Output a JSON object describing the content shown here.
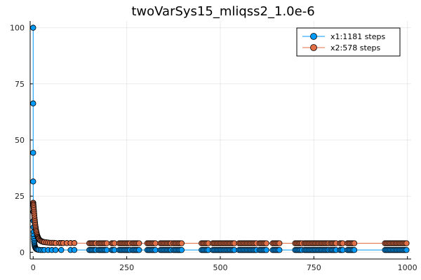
{
  "chart_data": {
    "type": "scatter",
    "title": "twoVarSys15_mliqss2_1.0e-6",
    "xlabel": "",
    "ylabel": "",
    "xlim": [
      -8,
      1010
    ],
    "ylim": [
      -3,
      103
    ],
    "x_ticks": [
      0,
      250,
      500,
      750,
      1000
    ],
    "y_ticks": [
      0,
      25,
      50,
      75,
      100
    ],
    "grid": true,
    "legend_position": "top-right",
    "series": [
      {
        "name": "x1:1181 steps",
        "color": "#009AFA",
        "transient": [
          [
            0,
            100
          ],
          [
            0,
            66.3
          ],
          [
            0,
            44.3
          ],
          [
            0,
            31.5
          ],
          [
            0.3,
            22
          ],
          [
            0.5,
            18
          ],
          [
            0.8,
            14
          ],
          [
            1,
            11.2
          ],
          [
            1.3,
            9
          ],
          [
            1.6,
            7.4
          ],
          [
            2,
            6
          ],
          [
            2.5,
            5
          ],
          [
            3,
            4.2
          ],
          [
            3.6,
            3.5
          ],
          [
            4.2,
            2.9
          ],
          [
            5,
            2.4
          ],
          [
            6,
            2
          ],
          [
            7,
            1.7
          ],
          [
            8,
            1.5
          ],
          [
            10,
            1.3
          ],
          [
            12,
            1.2
          ],
          [
            15,
            1.1
          ],
          [
            20,
            1
          ],
          [
            25,
            1
          ],
          [
            30,
            1
          ],
          [
            40,
            1
          ],
          [
            50,
            1
          ],
          [
            60,
            1
          ],
          [
            75,
            1
          ],
          [
            100,
            1
          ],
          [
            110,
            1
          ]
        ],
        "steady_y": 1,
        "clusters": [
          [
            150,
            170
          ],
          [
            175,
            200
          ],
          [
            210,
            220
          ],
          [
            230,
            260
          ],
          [
            265,
            285
          ],
          [
            305,
            330
          ],
          [
            340,
            370
          ],
          [
            375,
            400
          ],
          [
            450,
            470
          ],
          [
            480,
            540
          ],
          [
            550,
            600
          ],
          [
            605,
            625
          ],
          [
            640,
            660
          ],
          [
            700,
            720
          ],
          [
            725,
            790
          ],
          [
            795,
            810
          ],
          [
            820,
            830
          ],
          [
            840,
            860
          ],
          [
            940,
            1000
          ]
        ]
      },
      {
        "name": "x2:578 steps",
        "color": "#E26F46",
        "transient": [
          [
            0,
            22
          ],
          [
            0.3,
            21.5
          ],
          [
            0.6,
            21
          ],
          [
            1,
            20.4
          ],
          [
            1.4,
            19.6
          ],
          [
            1.8,
            18.8
          ],
          [
            2.2,
            18
          ],
          [
            2.6,
            17.2
          ],
          [
            3,
            16.4
          ],
          [
            3.5,
            15.5
          ],
          [
            4,
            14.6
          ],
          [
            4.5,
            13.8
          ],
          [
            5,
            13
          ],
          [
            5.6,
            12.2
          ],
          [
            6.2,
            11.4
          ],
          [
            6.8,
            10.7
          ],
          [
            7.5,
            10
          ],
          [
            8.2,
            9.4
          ],
          [
            9,
            8.8
          ],
          [
            10,
            8.1
          ],
          [
            11,
            7.5
          ],
          [
            12,
            7
          ],
          [
            13,
            6.6
          ],
          [
            14,
            6.2
          ],
          [
            15,
            5.9
          ],
          [
            17,
            5.5
          ],
          [
            19,
            5.2
          ],
          [
            21,
            5
          ],
          [
            24,
            4.8
          ],
          [
            27,
            4.6
          ],
          [
            30,
            4.5
          ],
          [
            35,
            4.4
          ],
          [
            40,
            4.3
          ],
          [
            45,
            4.2
          ],
          [
            50,
            4.2
          ],
          [
            55,
            4.2
          ],
          [
            60,
            4.1
          ],
          [
            70,
            4.1
          ],
          [
            75,
            4.1
          ],
          [
            80,
            4.1
          ],
          [
            90,
            4.1
          ],
          [
            100,
            4.1
          ],
          [
            110,
            4.1
          ]
        ],
        "steady_y": 4,
        "clusters": [
          [
            150,
            170
          ],
          [
            175,
            200
          ],
          [
            210,
            220
          ],
          [
            230,
            260
          ],
          [
            265,
            285
          ],
          [
            305,
            330
          ],
          [
            340,
            370
          ],
          [
            375,
            400
          ],
          [
            450,
            470
          ],
          [
            480,
            540
          ],
          [
            550,
            600
          ],
          [
            605,
            625
          ],
          [
            640,
            660
          ],
          [
            700,
            720
          ],
          [
            725,
            790
          ],
          [
            795,
            810
          ],
          [
            820,
            830
          ],
          [
            840,
            860
          ],
          [
            940,
            1000
          ]
        ]
      }
    ]
  }
}
